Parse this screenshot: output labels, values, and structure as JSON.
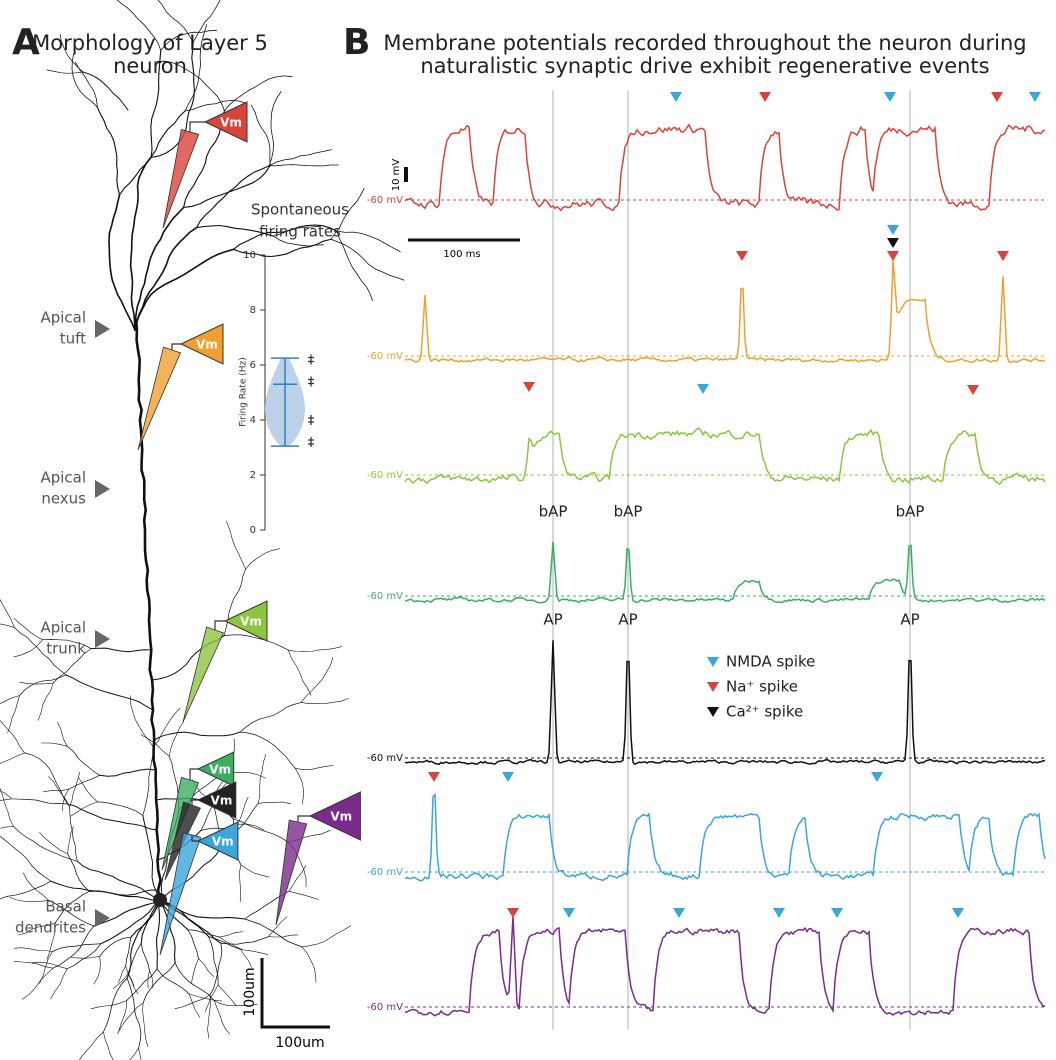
{
  "panel_a": {
    "letter": "A",
    "title_lines": [
      "Morphology of Layer 5",
      "neuron"
    ],
    "region_labels": [
      [
        "Apical",
        "tuft"
      ],
      [
        "Apical",
        "nexus"
      ],
      [
        "Apical",
        "trunk"
      ],
      [
        "Basal",
        "dendrites"
      ]
    ],
    "electrode_label": "Vm",
    "scale_bar_vertical": "100um",
    "scale_bar_horizontal": "100um"
  },
  "panel_b": {
    "letter": "B",
    "title_lines": [
      "Membrane potentials recorded throughout the neuron during",
      "naturalistic synaptic drive exhibit regenerative events"
    ],
    "baseline_label": "-60 mV",
    "voltage_scale": "10 mV",
    "time_scale": "100 ms",
    "bap_label": "bAP",
    "ap_label": "AP",
    "legend": [
      "NMDA spike",
      "Na⁺ spike",
      "Ca²⁺ spike"
    ]
  },
  "chart_data": {
    "type": "violin",
    "title_lines": [
      "Spontaneous",
      "firing rates"
    ],
    "y_label": "Firing Rate (Hz)",
    "ylim": [
      0,
      10
    ],
    "yticks": [
      0,
      2,
      4,
      6,
      8,
      10
    ],
    "median": 5.3,
    "whisker": [
      3.05,
      6.25
    ],
    "points": [
      6.2,
      5.4,
      4.0,
      3.2
    ],
    "color": "#bcd2e8",
    "line_color": "#2f7fc1"
  }
}
